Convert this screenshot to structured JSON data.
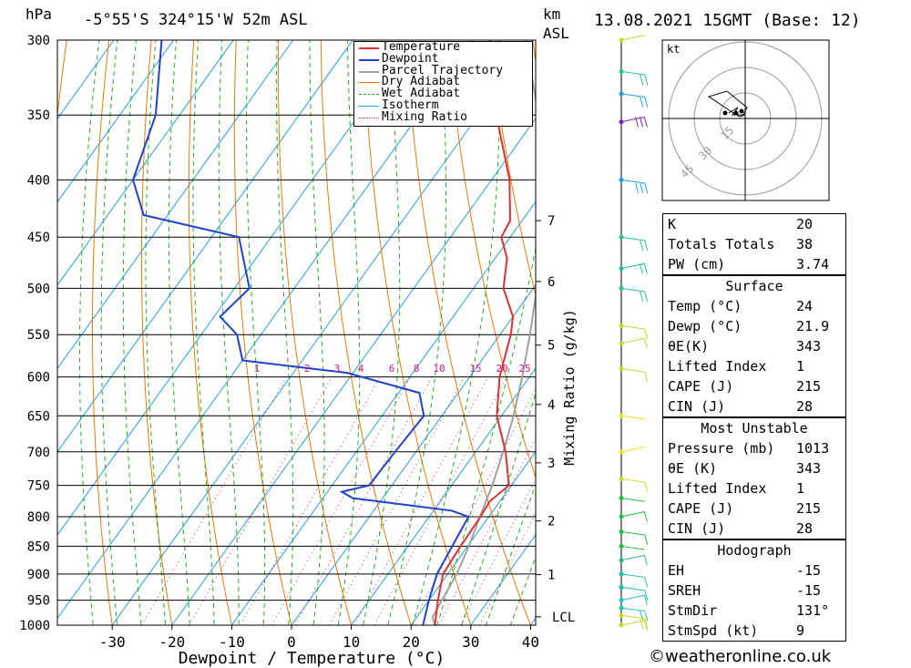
{
  "header": {
    "p_unit": "hPa",
    "location": "-5°55'S 324°15'W 52m ASL",
    "km_unit": "km",
    "asl": "ASL",
    "datetime": "13.08.2021 15GMT (Base: 12)"
  },
  "chart_data": {
    "type": "line",
    "title": "-5°55'S 324°15'W 52m ASL",
    "xlabel": "Dewpoint / Temperature (°C)",
    "ylabel": "hPa",
    "xlim": [
      -40,
      40
    ],
    "ylim": [
      1000,
      300
    ],
    "skew": "skew-T log-P",
    "x_ticks": [
      "-30",
      "-20",
      "-10",
      "0",
      "10",
      "20",
      "30",
      "40"
    ],
    "x_tick_values": [
      -30,
      -20,
      -10,
      0,
      10,
      20,
      30,
      40
    ],
    "p_ticks": [
      300,
      350,
      400,
      450,
      500,
      550,
      600,
      650,
      700,
      750,
      800,
      850,
      900,
      950,
      1000
    ],
    "km_labels": [
      {
        "p": 435,
        "label": "7"
      },
      {
        "p": 493,
        "label": "6"
      },
      {
        "p": 562,
        "label": "5"
      },
      {
        "p": 635,
        "label": "4"
      },
      {
        "p": 716,
        "label": "3"
      },
      {
        "p": 807,
        "label": "2"
      },
      {
        "p": 901,
        "label": "1"
      },
      {
        "p": 983,
        "label": "LCL"
      }
    ],
    "mixing_ratio_label": "Mixing Ratio (g/kg)",
    "mixing_ratio_values": [
      "1",
      "2",
      "3",
      "4",
      "6",
      "8",
      "10",
      "15",
      "20",
      "25"
    ],
    "series": [
      {
        "name": "Temperature",
        "color": "#e03030",
        "points": [
          [
            24,
            1000
          ],
          [
            21.5,
            950
          ],
          [
            19.2,
            900
          ],
          [
            18.8,
            850
          ],
          [
            18.6,
            800
          ],
          [
            18.3,
            775
          ],
          [
            19.6,
            750
          ],
          [
            15,
            700
          ],
          [
            9.2,
            650
          ],
          [
            5,
            600
          ],
          [
            1.8,
            550
          ],
          [
            0,
            530
          ],
          [
            -5,
            500
          ],
          [
            -8,
            470
          ],
          [
            -11.5,
            450
          ],
          [
            -12,
            435
          ],
          [
            -17,
            400
          ],
          [
            -27,
            350
          ],
          [
            -37,
            300
          ]
        ]
      },
      {
        "name": "Dewpoint",
        "color": "#2040d0",
        "points": [
          [
            22,
            1000
          ],
          [
            20,
            950
          ],
          [
            18.2,
            900
          ],
          [
            17.4,
            850
          ],
          [
            16.6,
            800
          ],
          [
            13,
            790
          ],
          [
            -5,
            770
          ],
          [
            -7.6,
            760
          ],
          [
            -3.8,
            750
          ],
          [
            -3.5,
            700
          ],
          [
            -3,
            650
          ],
          [
            -6.5,
            620
          ],
          [
            -21,
            595
          ],
          [
            -40,
            580
          ],
          [
            -44,
            550
          ],
          [
            -49,
            530
          ],
          [
            -47.5,
            500
          ],
          [
            -55.4,
            450
          ],
          [
            -74,
            430
          ],
          [
            -80,
            400
          ],
          [
            -84,
            350
          ],
          [
            -92,
            300
          ]
        ]
      },
      {
        "name": "Parcel Trajectory",
        "color": "#a0a0a0",
        "points": [
          [
            24,
            1000
          ],
          [
            22.6,
            983
          ],
          [
            21.5,
            900
          ],
          [
            20.2,
            850
          ],
          [
            18.5,
            800
          ],
          [
            16.8,
            750
          ],
          [
            14.6,
            700
          ],
          [
            12,
            650
          ],
          [
            8.8,
            600
          ],
          [
            5,
            550
          ],
          [
            0.6,
            500
          ],
          [
            -5,
            450
          ],
          [
            -11.6,
            400
          ],
          [
            -20,
            350
          ],
          [
            -31,
            300
          ]
        ]
      }
    ],
    "legend": [
      "Temperature",
      "Dewpoint",
      "Parcel Trajectory",
      "Dry Adiabat",
      "Wet Adiabat",
      "Isotherm",
      "Mixing Ratio"
    ],
    "legend_colors": [
      "#e03030",
      "#2040d0",
      "#a0a0a0",
      "#f07800",
      "#20b020",
      "#20a0e0",
      "#d02080"
    ],
    "wind_barbs": [
      {
        "p": 300,
        "color": "#c8d820",
        "barbs": 0
      },
      {
        "p": 320,
        "color": "#20c0a0",
        "barbs": 2
      },
      {
        "p": 335,
        "color": "#20a0e0",
        "barbs": 2
      },
      {
        "p": 355,
        "color": "#8020c0",
        "barbs": 3
      },
      {
        "p": 400,
        "color": "#20a0e0",
        "barbs": 3
      },
      {
        "p": 450,
        "color": "#20c0a0",
        "barbs": 2
      },
      {
        "p": 480,
        "color": "#20c0a0",
        "barbs": 2
      },
      {
        "p": 500,
        "color": "#20c0a0",
        "barbs": 2
      },
      {
        "p": 540,
        "color": "#c8d820",
        "barbs": 1
      },
      {
        "p": 560,
        "color": "#c8d820",
        "barbs": 1
      },
      {
        "p": 590,
        "color": "#c8d820",
        "barbs": 1
      },
      {
        "p": 650,
        "color": "#e8e020",
        "barbs": 0
      },
      {
        "p": 700,
        "color": "#e8e020",
        "barbs": 0
      },
      {
        "p": 740,
        "color": "#c8d820",
        "barbs": 1
      },
      {
        "p": 770,
        "color": "#20c040",
        "barbs": 0
      },
      {
        "p": 800,
        "color": "#20c040",
        "barbs": 1
      },
      {
        "p": 825,
        "color": "#20c040",
        "barbs": 1
      },
      {
        "p": 850,
        "color": "#20c040",
        "barbs": 0
      },
      {
        "p": 875,
        "color": "#20c080",
        "barbs": 1
      },
      {
        "p": 900,
        "color": "#20c0a0",
        "barbs": 1
      },
      {
        "p": 925,
        "color": "#20c0a0",
        "barbs": 1
      },
      {
        "p": 950,
        "color": "#20c0c0",
        "barbs": 1
      },
      {
        "p": 965,
        "color": "#20c0c0",
        "barbs": 2
      },
      {
        "p": 980,
        "color": "#c8d820",
        "barbs": 2
      },
      {
        "p": 1000,
        "color": "#c8d820",
        "barbs": 1
      }
    ],
    "hodograph": {
      "unit": "kt",
      "ring_labels": [
        "15",
        "30",
        "45"
      ],
      "trace_color": "#000000"
    }
  },
  "indices": {
    "k_label": "K",
    "k_value": "20",
    "tt_label": "Totals Totals",
    "tt_value": "38",
    "pw_label": "PW (cm)",
    "pw_value": "3.74"
  },
  "surface": {
    "title": "Surface",
    "temp_label": "Temp (°C)",
    "temp_value": "24",
    "dewp_label": "Dewp (°C)",
    "dewp_value": "21.9",
    "theta_label": "θE(K)",
    "theta_value": "343",
    "li_label": "Lifted Index",
    "li_value": "1",
    "cape_label": "CAPE (J)",
    "cape_value": "215",
    "cin_label": "CIN (J)",
    "cin_value": "28"
  },
  "most_unstable": {
    "title": "Most Unstable",
    "pressure_label": "Pressure (mb)",
    "pressure_value": "1013",
    "theta_label": "θE (K)",
    "theta_value": "343",
    "li_label": "Lifted Index",
    "li_value": "1",
    "cape_label": "CAPE (J)",
    "cape_value": "215",
    "cin_label": "CIN (J)",
    "cin_value": "28"
  },
  "hodograph_box": {
    "title": "Hodograph",
    "eh_label": "EH",
    "eh_value": "-15",
    "sreh_label": "SREH",
    "sreh_value": "-15",
    "stmdir_label": "StmDir",
    "stmdir_value": "131°",
    "stmspd_label": "StmSpd (kt)",
    "stmspd_value": "9"
  },
  "footer": "©weatheronline.co.uk"
}
